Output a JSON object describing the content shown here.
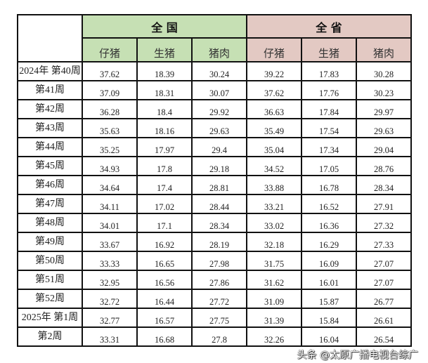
{
  "groups": [
    {
      "label": "全 国",
      "color": "#c6e0b4"
    },
    {
      "label": "全 省",
      "color": "#e3c9c3"
    }
  ],
  "subheaders": [
    "仔猪",
    "生猪",
    "猪肉",
    "仔猪",
    "生猪",
    "猪肉"
  ],
  "rows": [
    {
      "label": "2024年 第40周",
      "values": [
        "37.62",
        "18.39",
        "30.24",
        "39.22",
        "17.83",
        "30.28"
      ]
    },
    {
      "label": "第41周",
      "values": [
        "37.09",
        "18.31",
        "30.07",
        "37.62",
        "17.76",
        "30.23"
      ]
    },
    {
      "label": "第42周",
      "values": [
        "36.28",
        "18.4",
        "29.92",
        "36.63",
        "17.84",
        "29.97"
      ]
    },
    {
      "label": "第43周",
      "values": [
        "35.63",
        "18.16",
        "29.63",
        "35.49",
        "17.54",
        "29.63"
      ]
    },
    {
      "label": "第44周",
      "values": [
        "35.25",
        "17.97",
        "29.4",
        "35.04",
        "17.34",
        "29.04"
      ]
    },
    {
      "label": "第45周",
      "values": [
        "34.93",
        "17.8",
        "29.18",
        "34.52",
        "17.05",
        "28.76"
      ]
    },
    {
      "label": "第46周",
      "values": [
        "34.64",
        "17.4",
        "28.81",
        "33.88",
        "16.78",
        "28.34"
      ]
    },
    {
      "label": "第47周",
      "values": [
        "34.11",
        "17.02",
        "28.44",
        "33.21",
        "16.52",
        "27.91"
      ]
    },
    {
      "label": "第48周",
      "values": [
        "34.01",
        "17.1",
        "28.34",
        "33.02",
        "16.36",
        "27.32"
      ]
    },
    {
      "label": "第49周",
      "values": [
        "33.67",
        "16.92",
        "28.19",
        "32.18",
        "16.29",
        "27.33"
      ]
    },
    {
      "label": "第50周",
      "values": [
        "33.33",
        "16.65",
        "27.98",
        "31.75",
        "16.09",
        "27.07"
      ]
    },
    {
      "label": "第51周",
      "values": [
        "32.95",
        "16.56",
        "27.86",
        "31.62",
        "16.01",
        "27.07"
      ]
    },
    {
      "label": "第52周",
      "values": [
        "32.72",
        "16.44",
        "27.72",
        "31.09",
        "15.87",
        "26.77"
      ]
    },
    {
      "label": "2025年 第1周",
      "values": [
        "32.77",
        "16.57",
        "27.75",
        "31.39",
        "15.84",
        "26.61"
      ]
    },
    {
      "label": "第2周",
      "values": [
        "33.31",
        "16.68",
        "27.8",
        "32.26",
        "16.04",
        "26.54"
      ]
    }
  ],
  "watermark": "头条 @太原广播电视台综广"
}
